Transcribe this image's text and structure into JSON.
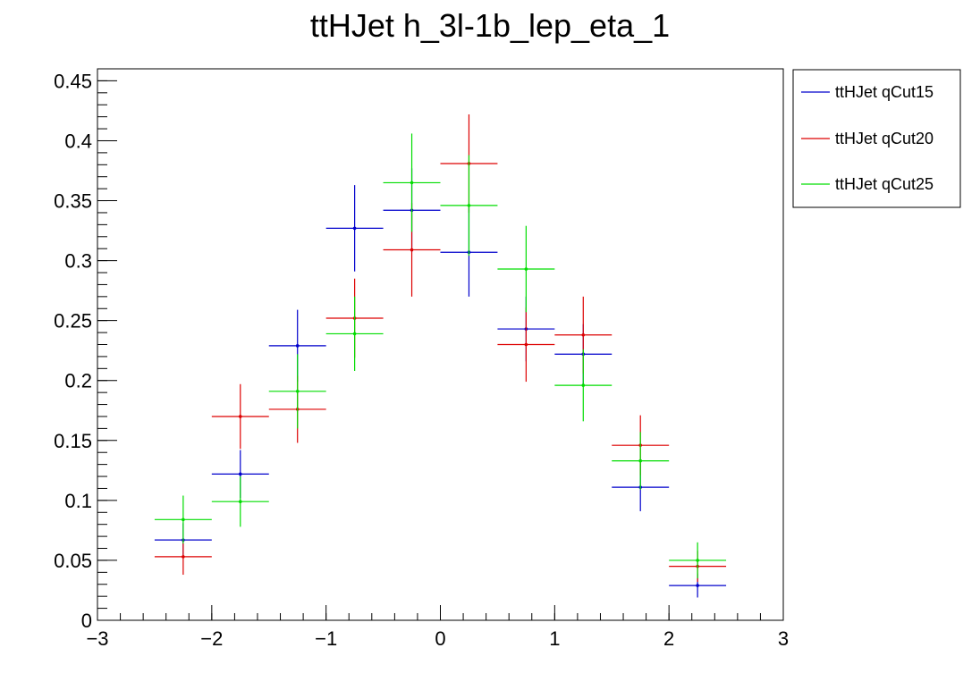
{
  "chart_data": {
    "type": "scatter",
    "title": "ttHJet h_3l-1b_lep_eta_1",
    "xlabel": "",
    "ylabel": "",
    "xlim": [
      -3,
      3
    ],
    "ylim": [
      0,
      0.46
    ],
    "x_ticks": [
      -3,
      -2,
      -1,
      0,
      1,
      2,
      3
    ],
    "x_tick_labels": [
      "−3",
      "−2",
      "−1",
      "0",
      "1",
      "2",
      "3"
    ],
    "y_ticks": [
      0,
      0.05,
      0.1,
      0.15,
      0.2,
      0.25,
      0.3,
      0.35,
      0.4,
      0.45
    ],
    "y_tick_labels": [
      "0",
      "0.05",
      "0.1",
      "0.15",
      "0.2",
      "0.25",
      "0.3",
      "0.35",
      "0.4",
      "0.45"
    ],
    "legend_position": "top-right outside",
    "bin_half_width": 0.25,
    "series": [
      {
        "name": "ttHJet qCut15",
        "color": "#0000cc",
        "x": [
          -2.25,
          -1.75,
          -1.25,
          -0.75,
          -0.25,
          0.25,
          0.75,
          1.25,
          1.75,
          2.25
        ],
        "y": [
          0.067,
          0.122,
          0.229,
          0.327,
          0.342,
          0.307,
          0.243,
          0.222,
          0.111,
          0.029
        ],
        "yerr": [
          0.014,
          0.02,
          0.03,
          0.036,
          0.035,
          0.037,
          0.027,
          0.025,
          0.02,
          0.01
        ]
      },
      {
        "name": "ttHJet qCut20",
        "color": "#dd0000",
        "x": [
          -2.25,
          -1.75,
          -1.25,
          -0.75,
          -0.25,
          0.25,
          0.75,
          1.25,
          1.75,
          2.25
        ],
        "y": [
          0.053,
          0.17,
          0.176,
          0.252,
          0.309,
          0.381,
          0.23,
          0.238,
          0.146,
          0.045
        ],
        "yerr": [
          0.015,
          0.027,
          0.028,
          0.033,
          0.039,
          0.041,
          0.031,
          0.032,
          0.025,
          0.013
        ]
      },
      {
        "name": "ttHJet qCut25",
        "color": "#00dd00",
        "x": [
          -2.25,
          -1.75,
          -1.25,
          -0.75,
          -0.25,
          0.25,
          0.75,
          1.25,
          1.75,
          2.25
        ],
        "y": [
          0.084,
          0.099,
          0.191,
          0.239,
          0.365,
          0.346,
          0.293,
          0.196,
          0.133,
          0.05
        ],
        "yerr": [
          0.02,
          0.021,
          0.031,
          0.031,
          0.041,
          0.042,
          0.036,
          0.03,
          0.024,
          0.015
        ]
      }
    ]
  }
}
